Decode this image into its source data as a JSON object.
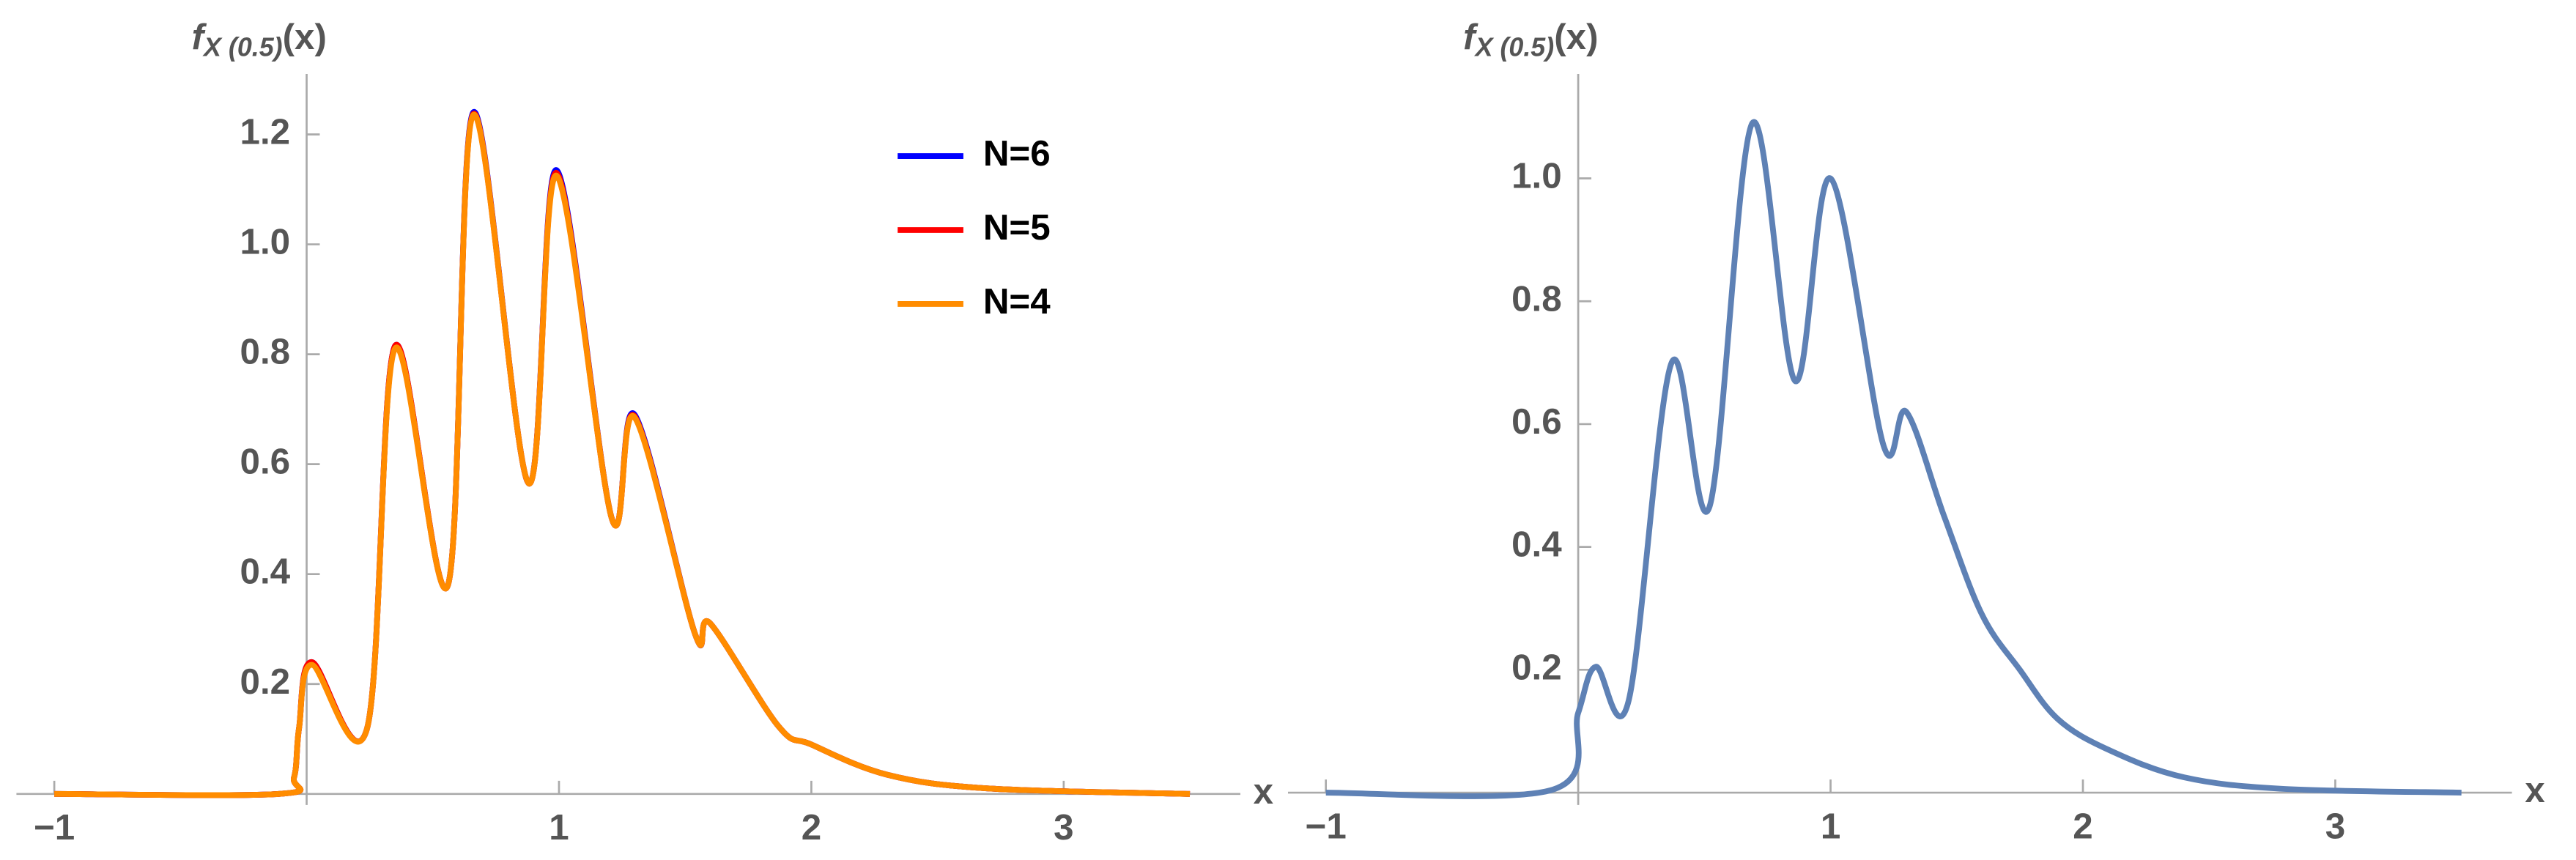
{
  "chart_data": [
    {
      "type": "line",
      "ylabel": {
        "main": "f",
        "sub": "X (0.5)",
        "arg": "(x)"
      },
      "xlabel": "x",
      "x": [
        -1,
        -0.11,
        -0.05,
        -0.03,
        0.02,
        0.24,
        0.35,
        0.56,
        0.66,
        0.88,
        0.99,
        1.21,
        1.3,
        1.54,
        1.6,
        1.87,
        2.0,
        2.3,
        2.7,
        3.5
      ],
      "series": [
        {
          "name": "N=6",
          "color": "#0000ff",
          "values": [
            0,
            0,
            0.03,
            0.12,
            0.24,
            0.12,
            0.815,
            0.38,
            1.24,
            0.565,
            1.135,
            0.5,
            0.69,
            0.29,
            0.31,
            0.123,
            0.09,
            0.035,
            0.01,
            0
          ]
        },
        {
          "name": "N=5",
          "color": "#ff0000",
          "values": [
            0,
            0,
            0.03,
            0.12,
            0.24,
            0.12,
            0.815,
            0.38,
            1.237,
            0.565,
            1.13,
            0.5,
            0.687,
            0.29,
            0.31,
            0.123,
            0.09,
            0.035,
            0.01,
            0
          ]
        },
        {
          "name": "N=4",
          "color": "#ff8c00",
          "values": [
            0,
            0,
            0.03,
            0.12,
            0.235,
            0.12,
            0.81,
            0.38,
            1.235,
            0.565,
            1.125,
            0.5,
            0.685,
            0.29,
            0.31,
            0.123,
            0.09,
            0.035,
            0.01,
            0
          ]
        }
      ],
      "xlim": [
        -1.15,
        3.7
      ],
      "ylim": [
        -0.02,
        1.31
      ],
      "xticks": [
        {
          "value": -1,
          "label": "−1"
        },
        1,
        2,
        3
      ],
      "yticks": [
        0.2,
        0.4,
        0.6,
        0.8,
        {
          "value": 1.0,
          "label": "1.0"
        },
        1.2
      ],
      "legend": "top-center"
    },
    {
      "type": "line",
      "ylabel": {
        "main": "f",
        "sub": "X (0.5)",
        "arg": "(x)"
      },
      "xlabel": "x",
      "x": [
        -1,
        -0.1,
        0,
        0.07,
        0.2,
        0.37,
        0.52,
        0.69,
        0.86,
        1.0,
        1.21,
        1.3,
        1.45,
        1.6,
        1.75,
        1.9,
        2.1,
        2.4,
        2.8,
        3.5
      ],
      "series": [
        {
          "color": "#5e81b5",
          "values": [
            0,
            0.005,
            0.13,
            0.205,
            0.15,
            0.7,
            0.465,
            1.09,
            0.67,
            1.0,
            0.565,
            0.62,
            0.45,
            0.29,
            0.2,
            0.12,
            0.07,
            0.025,
            0.006,
            0
          ]
        }
      ],
      "xlim": [
        -1.15,
        3.7
      ],
      "ylim": [
        -0.02,
        1.17
      ],
      "xticks": [
        {
          "value": -1,
          "label": "−1"
        },
        1,
        2,
        3
      ],
      "yticks": [
        0.2,
        0.4,
        0.6,
        0.8,
        {
          "value": 1.0,
          "label": "1.0"
        }
      ]
    }
  ]
}
